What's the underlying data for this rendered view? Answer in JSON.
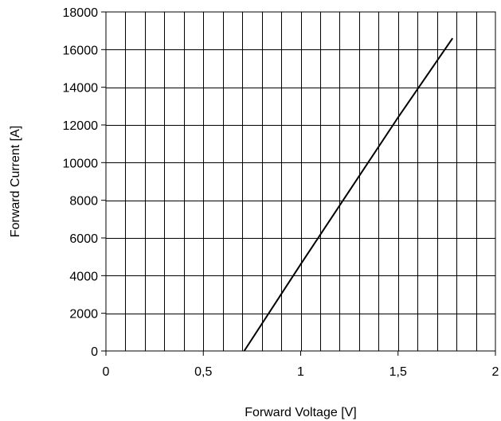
{
  "chart_data": {
    "type": "line",
    "xlabel": "Forward Voltage [V]",
    "ylabel": "Forward Current [A]",
    "xlim": [
      0,
      2
    ],
    "ylim": [
      0,
      18000
    ],
    "x_ticks": [
      {
        "value": 0,
        "label": "0"
      },
      {
        "value": 0.5,
        "label": "0,5"
      },
      {
        "value": 1,
        "label": "1"
      },
      {
        "value": 1.5,
        "label": "1,5"
      },
      {
        "value": 2,
        "label": "2"
      }
    ],
    "y_ticks": [
      {
        "value": 0,
        "label": "0"
      },
      {
        "value": 2000,
        "label": "2000"
      },
      {
        "value": 4000,
        "label": "4000"
      },
      {
        "value": 6000,
        "label": "6000"
      },
      {
        "value": 8000,
        "label": "8000"
      },
      {
        "value": 10000,
        "label": "10000"
      },
      {
        "value": 12000,
        "label": "12000"
      },
      {
        "value": 14000,
        "label": "14000"
      },
      {
        "value": 16000,
        "label": "16000"
      },
      {
        "value": 18000,
        "label": "18000"
      }
    ],
    "x_minor_step": 0.1,
    "y_minor_step": 2000,
    "grid": true,
    "series": [
      {
        "color": "#000000",
        "points": [
          {
            "x": 0.71,
            "y": 0
          },
          {
            "x": 1.0,
            "y": 4600
          },
          {
            "x": 1.25,
            "y": 8500
          },
          {
            "x": 1.5,
            "y": 12400
          },
          {
            "x": 1.78,
            "y": 16600
          }
        ]
      }
    ],
    "colors": {
      "axis": "#000000",
      "grid": "#000000",
      "line": "#000000"
    }
  }
}
